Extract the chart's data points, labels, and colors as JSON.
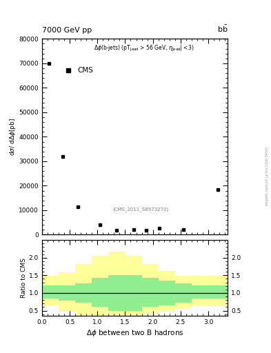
{
  "title_top": "7000 GeV pp",
  "title_right": "b$\\bar{\\text{b}}$",
  "cms_label": "CMS",
  "ref_label": "(CMS_2011_S8973270)",
  "xlabel": "$\\Delta\\phi$ between two B hadrons",
  "ylabel_top": "d$\\sigma$/ d$\\Delta\\phi$[pb]",
  "ylabel_bottom": "Ratio to CMS",
  "watermark": "mcplots.cern.ch [arXiv:1306.3436]",
  "data_x": [
    0.12,
    0.38,
    0.65,
    1.05,
    1.35,
    1.65,
    1.88,
    2.12,
    2.55,
    3.18
  ],
  "data_y": [
    70000,
    32000,
    11500,
    4000,
    1800,
    2200,
    1800,
    2700,
    2200,
    18500
  ],
  "main_ylim": [
    0,
    80000
  ],
  "main_yticks": [
    0,
    10000,
    20000,
    30000,
    40000,
    50000,
    60000,
    70000,
    80000
  ],
  "ratio_ylim": [
    0.35,
    2.5
  ],
  "ratio_yticks": [
    0.5,
    1.0,
    1.5,
    2.0
  ],
  "xlim": [
    0,
    3.35
  ],
  "xticks": [
    0,
    0.5,
    1.0,
    1.5,
    2.0,
    2.5,
    3.0
  ],
  "band_x_edges": [
    0.0,
    0.3,
    0.6,
    0.9,
    1.2,
    1.5,
    1.8,
    2.1,
    2.4,
    2.7,
    3.0,
    3.35
  ],
  "green_low": [
    0.85,
    0.78,
    0.72,
    0.6,
    0.5,
    0.5,
    0.6,
    0.65,
    0.72,
    0.85,
    0.85
  ],
  "green_high": [
    1.22,
    1.22,
    1.28,
    1.42,
    1.5,
    1.5,
    1.42,
    1.35,
    1.28,
    1.22,
    1.22
  ],
  "yellow_low": [
    0.65,
    0.48,
    0.38,
    0.3,
    0.27,
    0.3,
    0.4,
    0.48,
    0.55,
    0.62,
    0.62
  ],
  "yellow_high": [
    1.48,
    1.58,
    1.82,
    2.05,
    2.18,
    2.05,
    1.82,
    1.62,
    1.48,
    1.48,
    1.48
  ],
  "green_color": "#90EE90",
  "yellow_color": "#FFFF99"
}
